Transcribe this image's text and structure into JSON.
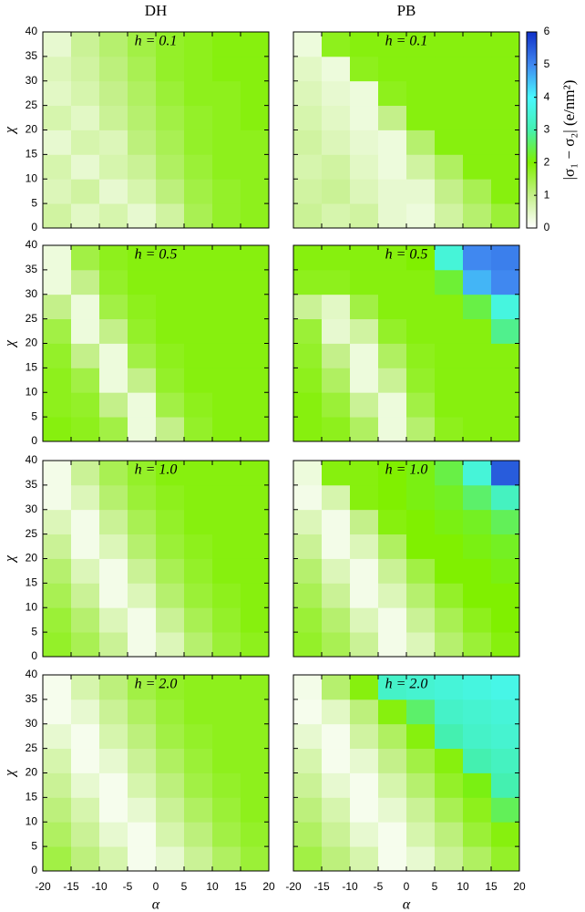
{
  "columns": [
    "DH",
    "PB"
  ],
  "colorbar": {
    "label": "|σ₁ − σ₂| (e/nm²)",
    "lim": [
      0,
      6
    ],
    "ticks": [
      0,
      1,
      2,
      3,
      4,
      5,
      6
    ],
    "colormap": [
      {
        "value": 0,
        "color": "#ffffff"
      },
      {
        "value": 1,
        "color": "#c4f08a"
      },
      {
        "value": 2,
        "color": "#80f000"
      },
      {
        "value": 3,
        "color": "#44f0b0"
      },
      {
        "value": 4,
        "color": "#48f8ff"
      },
      {
        "value": 5,
        "color": "#4088f0"
      },
      {
        "value": 6,
        "color": "#1030c8"
      }
    ]
  },
  "chart_data": [
    {
      "type": "heatmap",
      "title": "h = 0.1",
      "ylabel": "χ",
      "xbins": [
        -20,
        -15,
        -10,
        -5,
        0,
        5,
        10,
        15,
        20
      ],
      "ybins": [
        0,
        5,
        10,
        15,
        20,
        25,
        30,
        35,
        40
      ],
      "xlim": [
        -20,
        20
      ],
      "ylim": [
        0,
        40
      ],
      "xticks": [
        -20,
        -15,
        -10,
        -5,
        0,
        5,
        10,
        15,
        20
      ],
      "yticks": [
        0,
        5,
        10,
        15,
        20,
        25,
        30,
        35,
        40
      ],
      "values": [
        [
          0.8,
          0.5,
          0.7,
          0.4,
          0.8,
          1.4,
          1.7,
          1.8
        ],
        [
          0.6,
          0.8,
          0.4,
          0.7,
          1.1,
          1.5,
          1.7,
          1.8
        ],
        [
          0.7,
          0.4,
          0.7,
          0.9,
          1.3,
          1.6,
          1.8,
          1.8
        ],
        [
          0.4,
          0.7,
          0.6,
          1.1,
          1.4,
          1.7,
          1.8,
          1.8
        ],
        [
          0.7,
          0.5,
          0.9,
          1.2,
          1.5,
          1.7,
          1.8,
          1.9
        ],
        [
          0.5,
          0.7,
          1.0,
          1.3,
          1.6,
          1.8,
          1.8,
          1.9
        ],
        [
          0.6,
          0.8,
          1.1,
          1.4,
          1.7,
          1.8,
          1.9,
          1.9
        ],
        [
          0.4,
          0.9,
          1.2,
          1.5,
          1.7,
          1.8,
          1.9,
          1.9
        ]
      ]
    },
    {
      "type": "heatmap",
      "title": "h = 0.1",
      "xbins": [
        -20,
        -15,
        -10,
        -5,
        0,
        5,
        10,
        15,
        20
      ],
      "ybins": [
        0,
        5,
        10,
        15,
        20,
        25,
        30,
        35,
        40
      ],
      "xlim": [
        -20,
        20
      ],
      "ylim": [
        0,
        40
      ],
      "xticks": [
        -20,
        -15,
        -10,
        -5,
        0,
        5,
        10,
        15,
        20
      ],
      "yticks": [
        0,
        5,
        10,
        15,
        20,
        25,
        30,
        35,
        40
      ],
      "values": [
        [
          0.9,
          0.7,
          0.8,
          0.4,
          0.3,
          0.8,
          1.2,
          1.6
        ],
        [
          0.8,
          0.9,
          0.6,
          0.4,
          0.4,
          1.0,
          1.4,
          1.9
        ],
        [
          0.7,
          0.8,
          0.5,
          0.3,
          0.8,
          1.3,
          1.9,
          1.9
        ],
        [
          0.8,
          0.6,
          0.4,
          0.3,
          1.2,
          1.9,
          1.9,
          1.9
        ],
        [
          0.7,
          0.5,
          0.3,
          1.0,
          1.9,
          1.9,
          1.9,
          1.9
        ],
        [
          0.6,
          0.4,
          0.3,
          1.8,
          1.9,
          1.9,
          1.9,
          1.9
        ],
        [
          0.5,
          0.3,
          1.8,
          1.9,
          1.9,
          1.9,
          1.9,
          1.9
        ],
        [
          0.3,
          1.8,
          1.9,
          1.9,
          1.9,
          1.9,
          1.9,
          1.9
        ]
      ]
    },
    {
      "type": "heatmap",
      "title": "h = 0.5",
      "ylabel": "χ",
      "xbins": [
        -20,
        -15,
        -10,
        -5,
        0,
        5,
        10,
        15,
        20
      ],
      "ybins": [
        0,
        5,
        10,
        15,
        20,
        25,
        30,
        35,
        40
      ],
      "xlim": [
        -20,
        20
      ],
      "ylim": [
        0,
        40
      ],
      "xticks": [
        -20,
        -15,
        -10,
        -5,
        0,
        5,
        10,
        15,
        20
      ],
      "yticks": [
        0,
        5,
        10,
        15,
        20,
        25,
        30,
        35,
        40
      ],
      "values": [
        [
          1.9,
          1.8,
          1.5,
          0.3,
          1.0,
          1.7,
          1.9,
          1.9
        ],
        [
          1.8,
          1.7,
          1.0,
          0.3,
          1.5,
          1.8,
          1.9,
          1.9
        ],
        [
          1.8,
          1.5,
          0.3,
          1.0,
          1.7,
          1.9,
          1.9,
          1.9
        ],
        [
          1.7,
          1.0,
          0.3,
          1.5,
          1.8,
          1.9,
          1.9,
          1.9
        ],
        [
          1.5,
          0.3,
          1.0,
          1.7,
          1.9,
          1.9,
          1.9,
          1.9
        ],
        [
          1.0,
          0.3,
          1.5,
          1.8,
          1.9,
          1.9,
          1.9,
          1.9
        ],
        [
          0.3,
          1.0,
          1.7,
          1.9,
          1.9,
          1.9,
          1.9,
          1.9
        ],
        [
          0.3,
          1.5,
          1.8,
          1.9,
          1.9,
          1.9,
          1.9,
          1.9
        ]
      ]
    },
    {
      "type": "heatmap",
      "title": "h = 0.5",
      "xbins": [
        -20,
        -15,
        -10,
        -5,
        0,
        5,
        10,
        15,
        20
      ],
      "ybins": [
        0,
        5,
        10,
        15,
        20,
        25,
        30,
        35,
        40
      ],
      "xlim": [
        -20,
        20
      ],
      "ylim": [
        0,
        40
      ],
      "xticks": [
        -20,
        -15,
        -10,
        -5,
        0,
        5,
        10,
        15,
        20
      ],
      "yticks": [
        0,
        5,
        10,
        15,
        20,
        25,
        30,
        35,
        40
      ],
      "values": [
        [
          1.9,
          1.8,
          1.3,
          0.3,
          1.2,
          1.8,
          1.9,
          1.9
        ],
        [
          1.9,
          1.6,
          0.9,
          0.3,
          1.5,
          1.9,
          1.9,
          1.9
        ],
        [
          1.8,
          1.3,
          0.3,
          0.9,
          1.7,
          1.9,
          1.9,
          1.9
        ],
        [
          1.7,
          1.0,
          0.3,
          1.3,
          1.8,
          1.9,
          1.9,
          1.9
        ],
        [
          1.6,
          0.4,
          0.8,
          1.7,
          1.9,
          1.9,
          1.9,
          2.8
        ],
        [
          0.9,
          0.5,
          1.5,
          1.9,
          1.9,
          1.9,
          2.4,
          3.6
        ],
        [
          1.8,
          1.8,
          1.9,
          1.9,
          1.9,
          2.3,
          4.6,
          5.0
        ],
        [
          1.9,
          1.9,
          1.9,
          1.9,
          2.0,
          3.5,
          5.0,
          5.1
        ]
      ]
    },
    {
      "type": "heatmap",
      "title": "h = 1.0",
      "ylabel": "χ",
      "xbins": [
        -20,
        -15,
        -10,
        -5,
        0,
        5,
        10,
        15,
        20
      ],
      "ybins": [
        0,
        5,
        10,
        15,
        20,
        25,
        30,
        35,
        40
      ],
      "xlim": [
        -20,
        20
      ],
      "ylim": [
        0,
        40
      ],
      "xticks": [
        -20,
        -15,
        -10,
        -5,
        0,
        5,
        10,
        15,
        20
      ],
      "yticks": [
        0,
        5,
        10,
        15,
        20,
        25,
        30,
        35,
        40
      ],
      "values": [
        [
          1.7,
          1.4,
          0.9,
          0.2,
          0.6,
          1.2,
          1.6,
          1.8
        ],
        [
          1.6,
          1.2,
          0.6,
          0.2,
          0.9,
          1.4,
          1.7,
          1.9
        ],
        [
          1.4,
          0.9,
          0.2,
          0.6,
          1.2,
          1.6,
          1.8,
          1.9
        ],
        [
          1.2,
          0.6,
          0.2,
          0.9,
          1.4,
          1.7,
          1.9,
          1.9
        ],
        [
          0.9,
          0.2,
          0.6,
          1.2,
          1.6,
          1.8,
          1.9,
          1.9
        ],
        [
          0.6,
          0.2,
          0.9,
          1.4,
          1.7,
          1.9,
          1.9,
          1.9
        ],
        [
          0.2,
          0.6,
          1.2,
          1.6,
          1.8,
          1.9,
          1.9,
          1.9
        ],
        [
          0.2,
          0.9,
          1.4,
          1.7,
          1.9,
          1.9,
          1.9,
          1.9
        ]
      ]
    },
    {
      "type": "heatmap",
      "title": "h = 1.0",
      "xbins": [
        -20,
        -15,
        -10,
        -5,
        0,
        5,
        10,
        15,
        20
      ],
      "ybins": [
        0,
        5,
        10,
        15,
        20,
        25,
        30,
        35,
        40
      ],
      "xlim": [
        -20,
        20
      ],
      "ylim": [
        0,
        40
      ],
      "xticks": [
        -20,
        -15,
        -10,
        -5,
        0,
        5,
        10,
        15,
        20
      ],
      "yticks": [
        0,
        5,
        10,
        15,
        20,
        25,
        30,
        35,
        40
      ],
      "values": [
        [
          1.7,
          1.4,
          0.9,
          0.2,
          0.6,
          1.2,
          1.6,
          1.9
        ],
        [
          1.6,
          1.2,
          0.6,
          0.2,
          0.9,
          1.4,
          1.8,
          2.0
        ],
        [
          1.4,
          0.9,
          0.2,
          0.6,
          1.2,
          1.7,
          2.0,
          2.0
        ],
        [
          1.2,
          0.6,
          0.2,
          0.9,
          1.5,
          2.0,
          2.0,
          2.1
        ],
        [
          0.9,
          0.2,
          0.6,
          1.3,
          2.0,
          2.0,
          2.1,
          2.2
        ],
        [
          0.6,
          0.2,
          1.0,
          1.9,
          2.0,
          2.1,
          2.2,
          2.5
        ],
        [
          0.2,
          0.7,
          1.9,
          2.0,
          2.1,
          2.2,
          2.6,
          3.2
        ],
        [
          0.3,
          1.9,
          1.9,
          2.0,
          2.1,
          2.4,
          3.5,
          5.5
        ]
      ]
    },
    {
      "type": "heatmap",
      "title": "h = 2.0",
      "ylabel": "χ",
      "xlabel": "α",
      "xbins": [
        -20,
        -15,
        -10,
        -5,
        0,
        5,
        10,
        15,
        20
      ],
      "ybins": [
        0,
        5,
        10,
        15,
        20,
        25,
        30,
        35,
        40
      ],
      "xlim": [
        -20,
        20
      ],
      "ylim": [
        0,
        40
      ],
      "xticks": [
        -20,
        -15,
        -10,
        -5,
        0,
        5,
        10,
        15,
        20
      ],
      "yticks": [
        0,
        5,
        10,
        15,
        20,
        25,
        30,
        35,
        40
      ],
      "values": [
        [
          1.5,
          1.1,
          0.7,
          0.15,
          0.4,
          0.9,
          1.3,
          1.6
        ],
        [
          1.3,
          0.9,
          0.4,
          0.15,
          0.7,
          1.1,
          1.5,
          1.7
        ],
        [
          1.1,
          0.7,
          0.15,
          0.4,
          0.9,
          1.3,
          1.6,
          1.8
        ],
        [
          0.9,
          0.4,
          0.15,
          0.7,
          1.1,
          1.5,
          1.7,
          1.8
        ],
        [
          0.7,
          0.15,
          0.4,
          0.9,
          1.3,
          1.6,
          1.8,
          1.8
        ],
        [
          0.4,
          0.15,
          0.7,
          1.1,
          1.5,
          1.7,
          1.8,
          1.8
        ],
        [
          0.15,
          0.4,
          0.9,
          1.3,
          1.6,
          1.8,
          1.8,
          1.8
        ],
        [
          0.15,
          0.7,
          1.1,
          1.5,
          1.7,
          1.8,
          1.8,
          1.8
        ]
      ]
    },
    {
      "type": "heatmap",
      "title": "h = 2.0",
      "xlabel": "α",
      "xbins": [
        -20,
        -15,
        -10,
        -5,
        0,
        5,
        10,
        15,
        20
      ],
      "ybins": [
        0,
        5,
        10,
        15,
        20,
        25,
        30,
        35,
        40
      ],
      "xlim": [
        -20,
        20
      ],
      "ylim": [
        0,
        40
      ],
      "xticks": [
        -20,
        -15,
        -10,
        -5,
        0,
        5,
        10,
        15,
        20
      ],
      "yticks": [
        0,
        5,
        10,
        15,
        20,
        25,
        30,
        35,
        40
      ],
      "values": [
        [
          1.5,
          1.1,
          0.7,
          0.15,
          0.4,
          0.9,
          1.3,
          1.7
        ],
        [
          1.3,
          0.9,
          0.4,
          0.15,
          0.7,
          1.1,
          1.6,
          1.9
        ],
        [
          1.1,
          0.7,
          0.15,
          0.4,
          0.9,
          1.4,
          1.8,
          2.5
        ],
        [
          0.9,
          0.4,
          0.15,
          0.7,
          1.2,
          1.7,
          2.1,
          3.0
        ],
        [
          0.7,
          0.15,
          0.4,
          1.0,
          1.5,
          1.9,
          3.0,
          3.2
        ],
        [
          0.4,
          0.15,
          0.8,
          1.3,
          1.9,
          3.0,
          3.3,
          3.4
        ],
        [
          0.15,
          0.5,
          1.1,
          1.9,
          2.6,
          3.3,
          3.4,
          3.5
        ],
        [
          0.2,
          1.2,
          1.9,
          3.3,
          3.4,
          3.5,
          3.6,
          3.7
        ]
      ]
    }
  ]
}
